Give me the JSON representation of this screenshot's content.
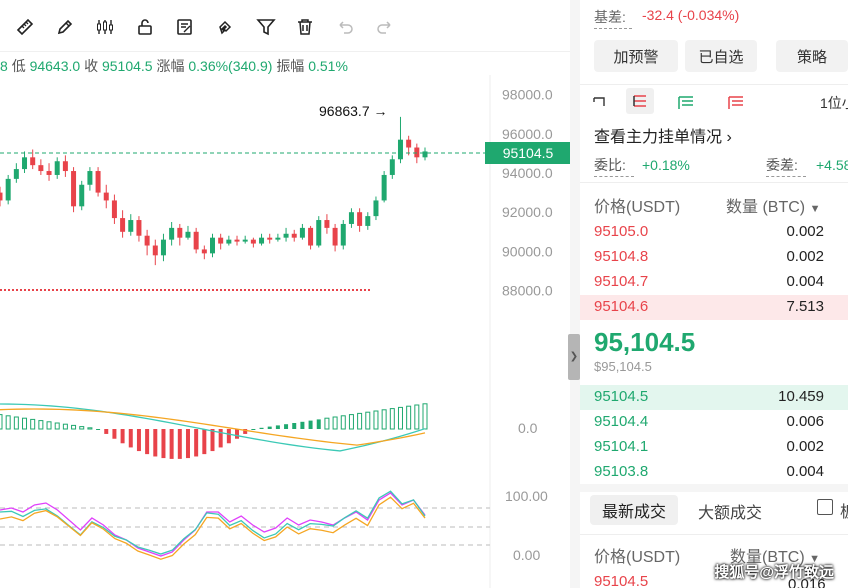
{
  "ohlc": {
    "open_partial": "8",
    "low_label": "低",
    "low": "94643.0",
    "close_label": "收",
    "close": "95104.5",
    "change_label": "涨幅",
    "change": "0.36%(340.9)",
    "amp_label": "振幅",
    "amp": "0.51%"
  },
  "price_axis": [
    "98000.0",
    "96000.0",
    "94000.0",
    "92000.0",
    "90000.0",
    "88000.0"
  ],
  "current_price_tag": "95104.5",
  "high_annotation": "96863.7 →",
  "macd_axis": "0.0",
  "kdj_axis": [
    "100.00",
    "0.00"
  ],
  "basis": {
    "label": "基差:",
    "value": "-32.4 (-0.034%)"
  },
  "buttons": {
    "alert": "加预警",
    "watchlist": "已自选",
    "strategy": "策略"
  },
  "depth_precision": "1位小",
  "main_orders_link": "查看主力挂单情况",
  "commission_ratio": {
    "label": "委比:",
    "value": "+0.18%"
  },
  "commission_diff": {
    "label": "委差:",
    "value": "+4.58"
  },
  "orderbook": {
    "price_header": "价格(USDT)",
    "qty_header": "数量 (BTC)",
    "asks": [
      {
        "p": "95105.0",
        "q": "0.002"
      },
      {
        "p": "95104.8",
        "q": "0.002"
      },
      {
        "p": "95104.7",
        "q": "0.004"
      },
      {
        "p": "95104.6",
        "q": "7.513"
      }
    ],
    "mid_price": "95,104.5",
    "mid_sub": "$95,104.5",
    "bids": [
      {
        "p": "95104.5",
        "q": "10.459"
      },
      {
        "p": "95104.4",
        "q": "0.006"
      },
      {
        "p": "95104.1",
        "q": "0.002"
      },
      {
        "p": "95103.8",
        "q": "0.004"
      }
    ]
  },
  "trades_tabs": {
    "latest": "最新成交",
    "large": "大额成交",
    "check": "板"
  },
  "trades": {
    "price_header": "价格(USDT)",
    "qty_header": "数量(BTC)",
    "first_price": "95104.5",
    "first_qty": "0.016"
  },
  "watermark": "搜狐号@浮竹致远",
  "colors": {
    "up": "#1fa86f",
    "down": "#e8434a",
    "macd_fast": "#3cc9b6",
    "macd_slow": "#f5a623",
    "kdj_k": "#e040fb"
  },
  "chart_data": {
    "type": "candlestick",
    "ylim": [
      86500,
      99000
    ],
    "candles": [
      [
        93000,
        92600,
        93300,
        92300
      ],
      [
        92600,
        93700,
        93900,
        92400
      ],
      [
        93700,
        94200,
        94500,
        93500
      ],
      [
        94200,
        94800,
        95100,
        94000
      ],
      [
        94800,
        94400,
        95200,
        94200
      ],
      [
        94400,
        94100,
        94700,
        93900
      ],
      [
        94100,
        93900,
        94500,
        93600
      ],
      [
        93900,
        94600,
        94800,
        93700
      ],
      [
        94600,
        94100,
        94900,
        93800
      ],
      [
        94100,
        92300,
        94300,
        92000
      ],
      [
        92300,
        93400,
        93600,
        92100
      ],
      [
        93400,
        94100,
        94300,
        93100
      ],
      [
        94100,
        93000,
        94300,
        92800
      ],
      [
        93000,
        92600,
        93400,
        92200
      ],
      [
        92600,
        91700,
        92900,
        91400
      ],
      [
        91700,
        91000,
        92100,
        90700
      ],
      [
        91000,
        91600,
        91900,
        90800
      ],
      [
        91600,
        90800,
        91800,
        90500
      ],
      [
        90800,
        90300,
        91100,
        89800
      ],
      [
        90300,
        89800,
        90600,
        89300
      ],
      [
        89800,
        90600,
        90900,
        89500
      ],
      [
        90600,
        91200,
        91500,
        90300
      ],
      [
        91200,
        90700,
        91400,
        90300
      ],
      [
        90700,
        91000,
        91300,
        90600
      ],
      [
        91000,
        90100,
        91200,
        89900
      ],
      [
        90100,
        89900,
        90300,
        89600
      ],
      [
        89900,
        90700,
        90900,
        89700
      ],
      [
        90700,
        90400,
        90900,
        90100
      ],
      [
        90400,
        90600,
        90800,
        90300
      ],
      [
        90600,
        90500,
        90800,
        90300
      ],
      [
        90500,
        90600,
        90800,
        90400
      ],
      [
        90600,
        90400,
        90700,
        90200
      ],
      [
        90400,
        90700,
        90900,
        90300
      ],
      [
        90700,
        90600,
        90900,
        90400
      ],
      [
        90600,
        90700,
        90900,
        90500
      ],
      [
        90700,
        90900,
        91200,
        90500
      ],
      [
        90900,
        90700,
        91100,
        90500
      ],
      [
        90700,
        91200,
        91400,
        90600
      ],
      [
        91200,
        90300,
        91300,
        90100
      ],
      [
        90300,
        91600,
        91800,
        90200
      ],
      [
        91600,
        91200,
        91900,
        90900
      ],
      [
        91200,
        90300,
        91400,
        90000
      ],
      [
        90300,
        91400,
        91600,
        90100
      ],
      [
        91400,
        92000,
        92200,
        91200
      ],
      [
        92000,
        91300,
        92200,
        91000
      ],
      [
        91300,
        91800,
        92000,
        91100
      ],
      [
        91800,
        92600,
        92800,
        91600
      ],
      [
        92600,
        93900,
        94100,
        92500
      ],
      [
        93900,
        94700,
        94900,
        93700
      ],
      [
        94700,
        95700,
        96863.7,
        94500
      ],
      [
        95700,
        95300,
        95900,
        94900
      ],
      [
        95300,
        94800,
        95500,
        94500
      ],
      [
        94800,
        95100,
        95300,
        94643
      ]
    ]
  }
}
